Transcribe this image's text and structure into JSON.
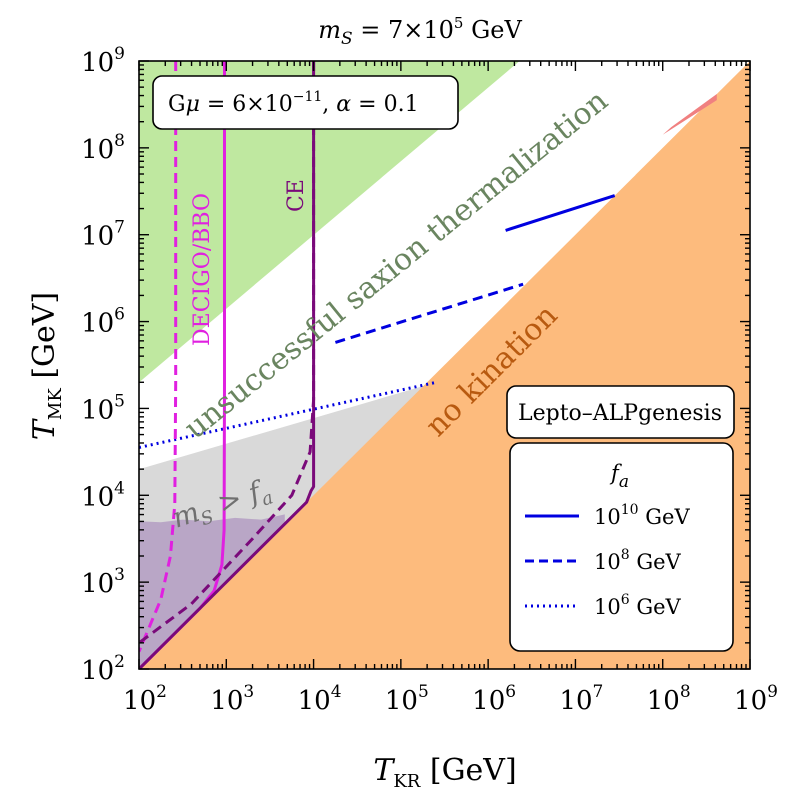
{
  "chart_data": {
    "type": "area",
    "title": "m_S = 7×10^5 GeV",
    "title_parts": {
      "symbol": "m",
      "sub": "S",
      "mid": " = 7×10",
      "exp": "5",
      "unit": " GeV"
    },
    "xlabel": {
      "symbol": "T",
      "sub": "KR",
      "unit": " [GeV]"
    },
    "ylabel": {
      "symbol": "T",
      "sub": "MK",
      "unit": " [GeV]"
    },
    "xscale": "log",
    "yscale": "log",
    "xlim_log10": [
      2,
      9
    ],
    "ylim_log10": [
      2,
      9
    ],
    "tick_base": "10",
    "xticks_log10": [
      2,
      3,
      4,
      5,
      6,
      7,
      8,
      9
    ],
    "yticks_log10": [
      2,
      3,
      4,
      5,
      6,
      7,
      8,
      9
    ],
    "regions": [
      {
        "name": "green",
        "label": "unsuccessful saxion thermalization",
        "color": "#bfe8a0",
        "polygon_log10": [
          [
            2,
            5.3
          ],
          [
            6.36,
            9
          ],
          [
            2,
            9
          ]
        ]
      },
      {
        "name": "gray",
        "label": "m_S > f_a",
        "color": "#d9d9d9",
        "polygon_log10": [
          [
            2,
            4.3
          ],
          [
            5.4,
            5.3
          ],
          [
            2,
            2
          ]
        ]
      },
      {
        "name": "purple",
        "label": "",
        "color": "#b9a6c6",
        "polygon_log10": [
          [
            2,
            2
          ],
          [
            3.67,
            3.67
          ],
          [
            3.67,
            3.78
          ],
          [
            3.4,
            3.72
          ],
          [
            3.1,
            3.74
          ],
          [
            2.8,
            3.7
          ],
          [
            2.5,
            3.72
          ],
          [
            2.25,
            3.69
          ],
          [
            2,
            3.7
          ]
        ]
      },
      {
        "name": "orange",
        "label": "no kination",
        "color": "#fdbb7d",
        "polygon_log10": [
          [
            2,
            2
          ],
          [
            9,
            9
          ],
          [
            9,
            2
          ]
        ]
      },
      {
        "name": "red",
        "label": "",
        "color": "#f08080",
        "polygon_log10": [
          [
            8.0,
            8.15
          ],
          [
            8.62,
            8.55
          ],
          [
            8.62,
            8.62
          ],
          [
            8.1,
            8.24
          ]
        ]
      }
    ],
    "region_labels": {
      "green": "unsuccessful saxion thermalization",
      "orange": "no kination",
      "gray_symbol": "m",
      "gray_sub": "S",
      "gray_rel": " > ",
      "gray_symbol2": "f",
      "gray_sub2": "a"
    },
    "series": [
      {
        "name": "f_a = 10^10 GeV",
        "style": "solid",
        "color": "#0000e0",
        "points_log10": [
          [
            6.2,
            7.05
          ],
          [
            7.45,
            7.45
          ]
        ]
      },
      {
        "name": "f_a = 10^8 GeV",
        "style": "dashed",
        "color": "#0000e0",
        "points_log10": [
          [
            4.25,
            5.76
          ],
          [
            6.4,
            6.43
          ]
        ]
      },
      {
        "name": "f_a = 10^6 GeV",
        "style": "dotted",
        "color": "#0000e0",
        "points_log10": [
          [
            2,
            4.55
          ],
          [
            5.4,
            5.3
          ]
        ]
      },
      {
        "name": "DECIGO/BBO solid",
        "style": "solid",
        "color": "#e020e0",
        "points_log10": [
          [
            2.98,
            9
          ],
          [
            2.98,
            5.3
          ],
          [
            2.975,
            3.6
          ],
          [
            2.95,
            3.2
          ],
          [
            2.86,
            2.9
          ],
          [
            2.7,
            2.7
          ],
          [
            2,
            2
          ]
        ]
      },
      {
        "name": "DECIGO/BBO dashed",
        "style": "dashed",
        "color": "#e020e0",
        "points_log10": [
          [
            2.42,
            9
          ],
          [
            2.42,
            5.3
          ],
          [
            2.41,
            3.9
          ],
          [
            2.36,
            3.3
          ],
          [
            2.25,
            2.8
          ],
          [
            2,
            2.2
          ]
        ]
      },
      {
        "name": "CE solid",
        "style": "solid",
        "color": "#7a0a7a",
        "points_log10": [
          [
            4.0,
            9
          ],
          [
            4.0,
            4.1
          ],
          [
            3.97,
            4.05
          ],
          [
            3.92,
            3.92
          ],
          [
            2,
            2
          ]
        ]
      },
      {
        "name": "CE dashed",
        "style": "dashed",
        "color": "#7a0a7a",
        "points_log10": [
          [
            4.0,
            9
          ],
          [
            4.0,
            5.1
          ],
          [
            3.96,
            4.5
          ],
          [
            3.75,
            4.0
          ],
          [
            3.3,
            3.5
          ],
          [
            2.6,
            2.75
          ],
          [
            2,
            2.3
          ]
        ]
      }
    ],
    "curve_labels": {
      "decigo": "DECIGO/BBO",
      "ce": "CE"
    },
    "annotation_parts": {
      "g": "G",
      "mu": "μ",
      "eq1": " = 6×10",
      "exp": "−11",
      "sep": ",  ",
      "alpha": "α",
      "eq2": " = 0.1"
    },
    "scenario_label": "Lepto–ALPgenesis",
    "legend": {
      "title_symbol": "f",
      "title_sub": "a",
      "entries": [
        {
          "style": "solid",
          "base": "10",
          "exp": "10",
          "unit": " GeV"
        },
        {
          "style": "dashed",
          "base": "10",
          "exp": "8",
          "unit": " GeV"
        },
        {
          "style": "dotted",
          "base": "10",
          "exp": "6",
          "unit": " GeV"
        }
      ]
    }
  }
}
